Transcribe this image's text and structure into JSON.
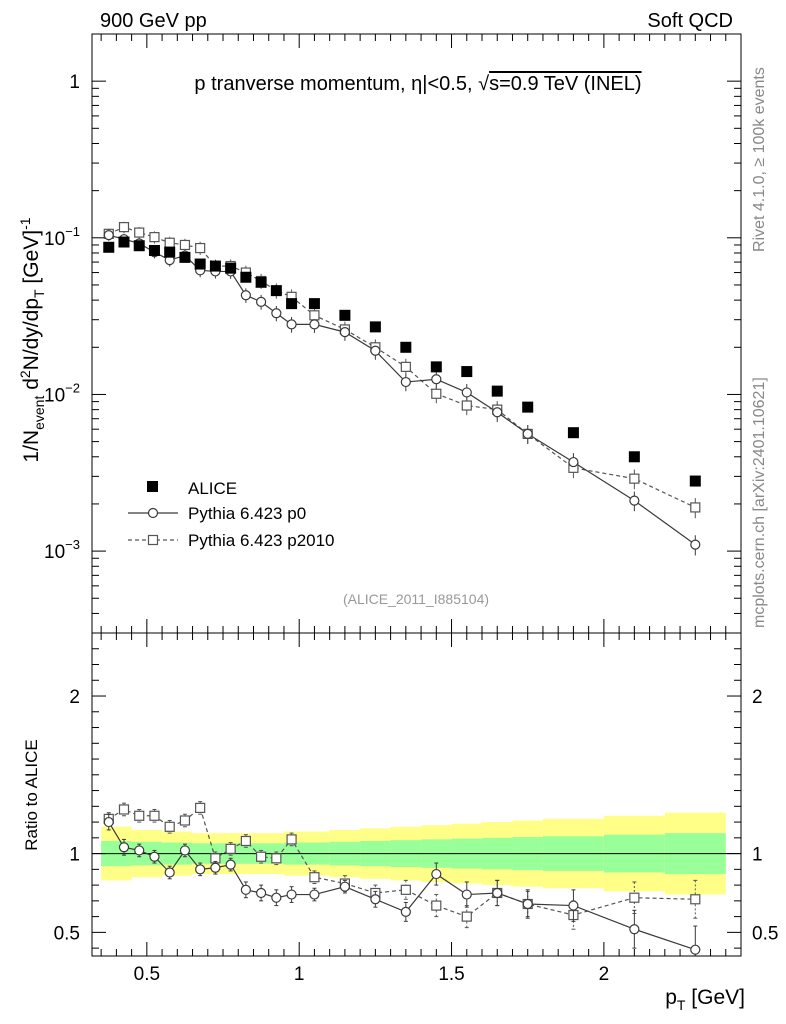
{
  "header": {
    "left": "900 GeV pp",
    "right": "Soft QCD"
  },
  "side_text": {
    "top": "Rivet 4.1.0, ≥ 100k events",
    "bottom": "mcplots.cern.ch [arXiv:2401.10621]"
  },
  "analysis_id": "(ALICE_2011_I885104)",
  "colors": {
    "alice": "#000000",
    "p0": "#3a3a3a",
    "p2010": "#555555",
    "band_inner": "#99ff99",
    "band_outer": "#ffff88"
  },
  "chart_data": [
    {
      "type": "scatter",
      "title": "p tranverse momentum, |η|<0.5, √s=0.9 TeV (INEL)",
      "title_parts": [
        "p tranverse momentum, ",
        "η",
        "|<0.5, ",
        "√",
        "s=0.9 TeV (INEL)"
      ],
      "ylabel": "1/N_event d²N/dy/dp_T [GeV]⁻¹",
      "ylabel_parts": [
        "1/N",
        "event",
        " d",
        "2",
        "N/dy/dp",
        "T",
        " [GeV]",
        "-1"
      ],
      "yscale": "log",
      "ylim": [
        0.0003,
        2.0
      ],
      "xlim": [
        0.32,
        2.45
      ],
      "yticks": [
        {
          "value": 1,
          "mant": "1",
          "exp": ""
        },
        {
          "value": 0.1,
          "mant": "10",
          "exp": "−1"
        },
        {
          "value": 0.01,
          "mant": "10",
          "exp": "−2"
        },
        {
          "value": 0.001,
          "mant": "10",
          "exp": "−3"
        }
      ],
      "legend": {
        "position": "bottom-left",
        "entries": [
          "ALICE",
          "Pythia 6.423 p0",
          "Pythia 6.423 p2010"
        ]
      },
      "x": [
        0.375,
        0.425,
        0.475,
        0.525,
        0.575,
        0.625,
        0.675,
        0.725,
        0.775,
        0.825,
        0.875,
        0.925,
        0.975,
        1.05,
        1.15,
        1.25,
        1.35,
        1.45,
        1.55,
        1.65,
        1.75,
        1.9,
        2.1,
        2.3
      ],
      "series": [
        {
          "name": "ALICE",
          "marker": "filled-square",
          "values": [
            0.087,
            0.094,
            0.089,
            0.083,
            0.081,
            0.075,
            0.068,
            0.066,
            0.064,
            0.056,
            0.052,
            0.046,
            0.038,
            0.038,
            0.032,
            0.027,
            0.02,
            0.015,
            0.014,
            0.0105,
            0.0083,
            0.0057,
            0.004,
            0.0028
          ]
        },
        {
          "name": "Pythia 6.423 p0",
          "marker": "open-circle",
          "line": "solid",
          "values": [
            0.104,
            0.098,
            0.092,
            0.081,
            0.072,
            0.077,
            0.062,
            0.061,
            0.061,
            0.043,
            0.039,
            0.033,
            0.028,
            0.028,
            0.025,
            0.019,
            0.012,
            0.0125,
            0.0103,
            0.0077,
            0.0056,
            0.0037,
            0.0021,
            0.0011
          ]
        },
        {
          "name": "Pythia 6.423 p2010",
          "marker": "open-square",
          "line": "dashed",
          "values": [
            0.106,
            0.117,
            0.108,
            0.101,
            0.093,
            0.09,
            0.086,
            0.066,
            0.066,
            0.06,
            0.053,
            0.046,
            0.042,
            0.032,
            0.026,
            0.02,
            0.015,
            0.0101,
            0.0085,
            0.008,
            0.0056,
            0.0034,
            0.0029,
            0.0019
          ]
        }
      ]
    },
    {
      "type": "line",
      "ylabel": "Ratio to ALICE",
      "xlabel": "p_T [GeV]",
      "xlabel_parts": [
        "p",
        "T",
        " [GeV]"
      ],
      "ylim": [
        0.35,
        2.4
      ],
      "xlim": [
        0.32,
        2.45
      ],
      "xticks": [
        0.5,
        1,
        1.5,
        2
      ],
      "xticklabels": [
        "0.5",
        "1",
        "1.5",
        "2"
      ],
      "yticks": [
        0.5,
        1,
        2
      ],
      "yticklabels": [
        "0.5",
        "1",
        "2"
      ],
      "reference": 1,
      "band_edges": [
        0.35,
        0.45,
        0.55,
        0.65,
        0.75,
        0.85,
        0.95,
        1.1,
        1.2,
        1.3,
        1.4,
        1.5,
        1.6,
        1.7,
        1.8,
        2.0,
        2.2,
        2.4
      ],
      "band_inner": [
        0.08,
        0.075,
        0.07,
        0.065,
        0.065,
        0.065,
        0.07,
        0.075,
        0.08,
        0.085,
        0.09,
        0.095,
        0.1,
        0.105,
        0.11,
        0.12,
        0.13,
        0.14
      ],
      "band_outer": [
        0.17,
        0.15,
        0.14,
        0.13,
        0.13,
        0.13,
        0.14,
        0.15,
        0.16,
        0.17,
        0.18,
        0.19,
        0.2,
        0.21,
        0.22,
        0.24,
        0.26,
        0.28
      ],
      "series": [
        {
          "name": "Pythia 6.423 p0",
          "values": [
            1.2,
            1.04,
            1.02,
            0.98,
            0.88,
            1.02,
            0.9,
            0.91,
            0.93,
            0.77,
            0.75,
            0.72,
            0.74,
            0.74,
            0.79,
            0.71,
            0.63,
            0.87,
            0.74,
            0.75,
            0.68,
            0.67,
            0.52,
            0.39
          ],
          "errors": [
            0.05,
            0.05,
            0.04,
            0.04,
            0.04,
            0.04,
            0.04,
            0.04,
            0.04,
            0.05,
            0.05,
            0.05,
            0.05,
            0.04,
            0.04,
            0.05,
            0.06,
            0.07,
            0.08,
            0.08,
            0.09,
            0.1,
            0.12,
            0.15
          ]
        },
        {
          "name": "Pythia 6.423 p2010",
          "values": [
            1.22,
            1.28,
            1.24,
            1.24,
            1.17,
            1.21,
            1.29,
            0.97,
            1.03,
            1.08,
            0.98,
            0.97,
            1.09,
            0.85,
            0.81,
            0.75,
            0.77,
            0.67,
            0.6,
            0.75,
            0.68,
            0.61,
            0.72,
            0.71
          ],
          "errors": [
            0.04,
            0.04,
            0.04,
            0.04,
            0.04,
            0.04,
            0.04,
            0.04,
            0.04,
            0.04,
            0.04,
            0.04,
            0.04,
            0.04,
            0.05,
            0.05,
            0.06,
            0.07,
            0.07,
            0.08,
            0.08,
            0.09,
            0.1,
            0.12
          ]
        }
      ]
    }
  ]
}
